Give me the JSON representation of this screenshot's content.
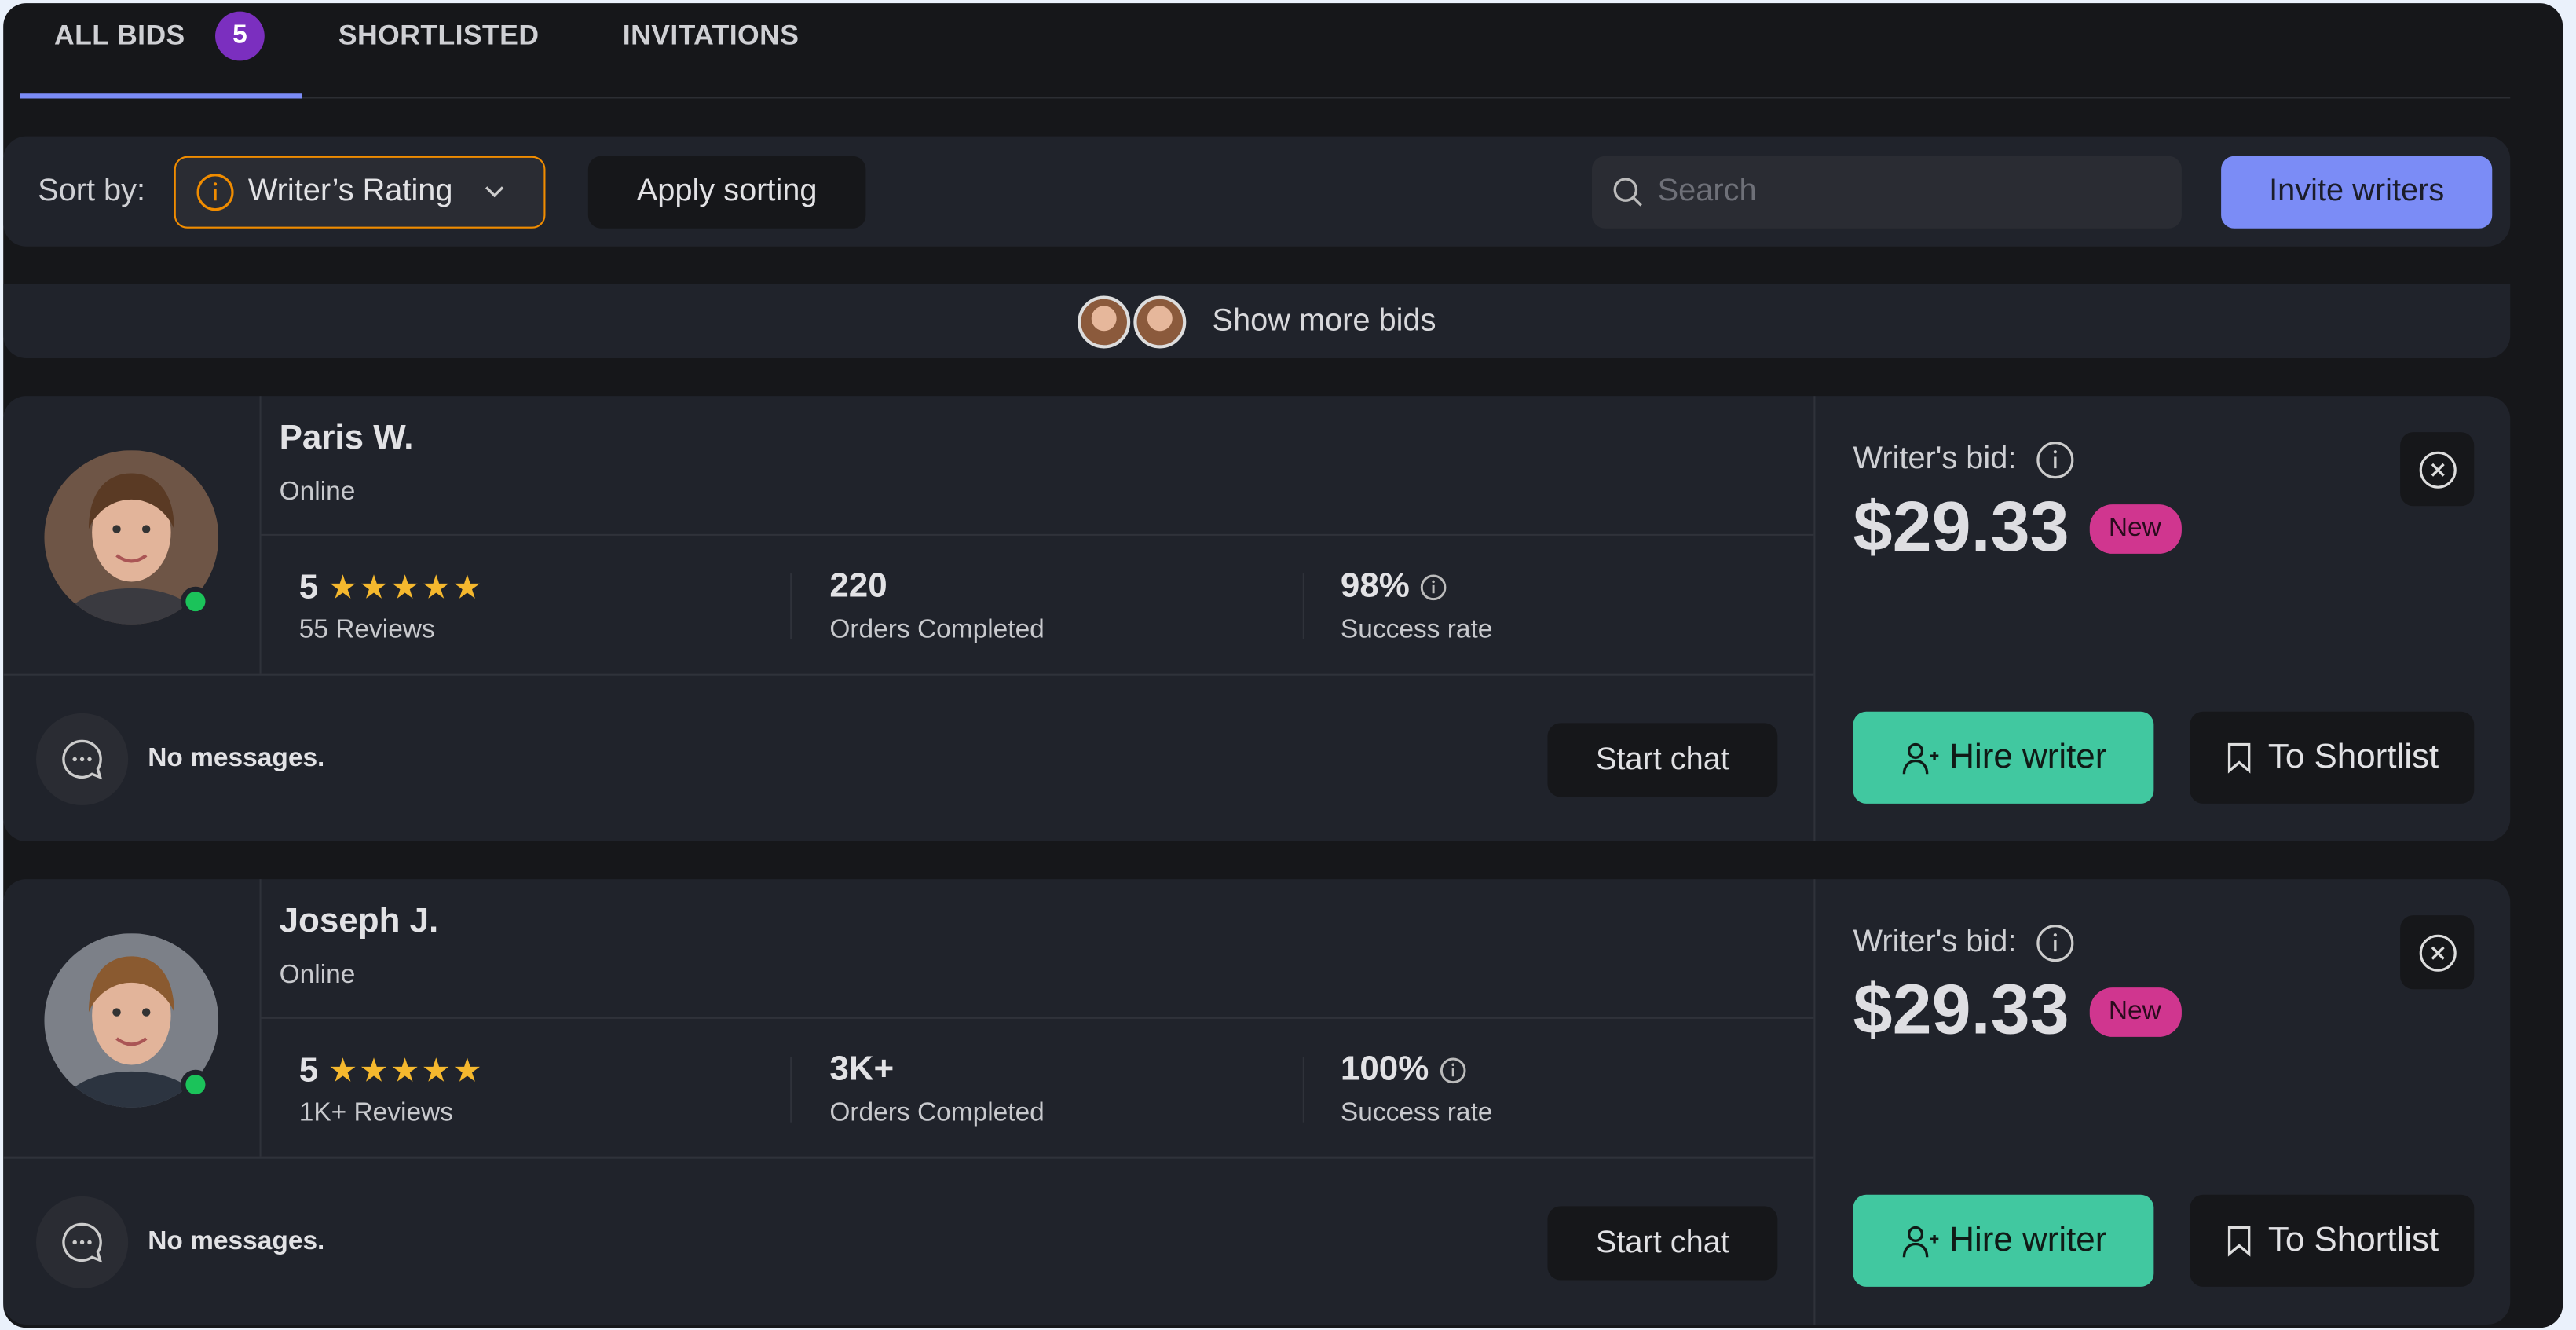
{
  "tabs": [
    {
      "label": "ALL BIDS",
      "badge": "5",
      "active": true
    },
    {
      "label": "SHORTLISTED"
    },
    {
      "label": "INVITATIONS"
    }
  ],
  "toolbar": {
    "sort_label": "Sort by:",
    "sort_value": "Writer’s Rating",
    "apply_label": "Apply sorting",
    "search_placeholder": "Search",
    "invite_label": "Invite writers"
  },
  "show_more": {
    "label": "Show more bids"
  },
  "colors": {
    "accent": "#7b8cf6",
    "badge": "#7b2fbf",
    "sort_border": "#f08c00",
    "hire": "#41c8a0",
    "new_badge": "#d0368f",
    "online": "#1bc35a",
    "stars": "#f5b82e"
  },
  "bids": [
    {
      "name": "Paris W.",
      "status": "Online",
      "rating": "5",
      "stars": "★★★★★",
      "reviews": "55 Reviews",
      "orders": "220",
      "orders_label": "Orders Completed",
      "success": "98%",
      "success_label": "Success rate",
      "messages": "No messages.",
      "chat_label": "Start chat",
      "bid_label": "Writer's bid:",
      "price": "$29.33",
      "badge": "New",
      "hire_label": "Hire writer",
      "shortlist_label": "To Shortlist"
    },
    {
      "name": "Joseph J.",
      "status": "Online",
      "rating": "5",
      "stars": "★★★★★",
      "reviews": "1K+ Reviews",
      "orders": "3K+",
      "orders_label": "Orders Completed",
      "success": "100%",
      "success_label": "Success rate",
      "messages": "No messages.",
      "chat_label": "Start chat",
      "bid_label": "Writer's bid:",
      "price": "$29.33",
      "badge": "New",
      "hire_label": "Hire writer",
      "shortlist_label": "To Shortlist"
    }
  ]
}
